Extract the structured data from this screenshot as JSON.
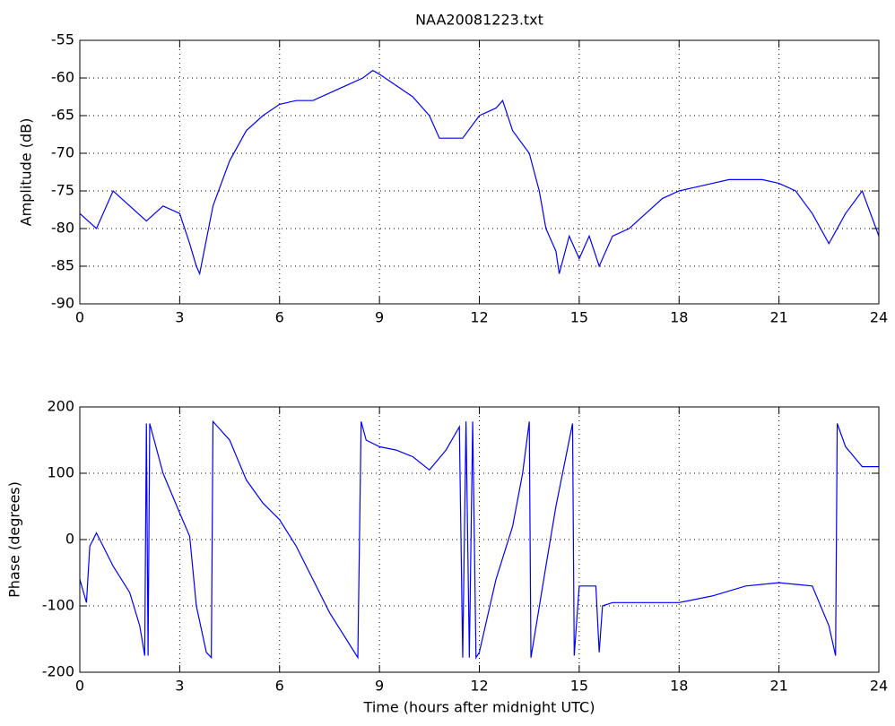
{
  "chart_data": [
    {
      "type": "line",
      "title": "NAA20081223.txt",
      "y_label": "Amplitude (dB)",
      "color": "#0000ff",
      "grid": true,
      "x": [
        0,
        0.5,
        1,
        1.5,
        2,
        2.5,
        3,
        3.3,
        3.5,
        3.6,
        4,
        4.5,
        5,
        5.5,
        6,
        6.5,
        7,
        7.5,
        8,
        8.5,
        8.8,
        9,
        9.5,
        10,
        10.5,
        10.8,
        11,
        11.5,
        12,
        12.5,
        12.7,
        13,
        13.5,
        13.8,
        14,
        14.3,
        14.4,
        14.7,
        15,
        15.3,
        15.6,
        16,
        16.5,
        17,
        17.5,
        18,
        18.5,
        19,
        19.5,
        20,
        20.5,
        21,
        21.5,
        22,
        22.5,
        23,
        23.5,
        24
      ],
      "values": [
        -78,
        -80,
        -75,
        -77,
        -79,
        -77,
        -78,
        -82,
        -85,
        -86,
        -77,
        -71,
        -67,
        -65,
        -63.5,
        -63,
        -63,
        -62,
        -61,
        -60,
        -59,
        -59.5,
        -61,
        -62.5,
        -65,
        -68,
        -68,
        -68,
        -65,
        -64,
        -63,
        -67,
        -70,
        -75,
        -80,
        -83,
        -86,
        -81,
        -84,
        -81,
        -85,
        -81,
        -80,
        -78,
        -76,
        -75,
        -74.5,
        -74,
        -73.5,
        -73.5,
        -73.5,
        -74,
        -75,
        -78,
        -82,
        -78,
        -75,
        -81
      ],
      "xlim": [
        0,
        24
      ],
      "xticks": [
        0,
        3,
        6,
        9,
        12,
        15,
        18,
        21,
        24
      ],
      "ylim": [
        -90,
        -55
      ],
      "yticks": [
        -90,
        -85,
        -80,
        -75,
        -70,
        -65,
        -60,
        -55
      ]
    },
    {
      "type": "line",
      "y_label": "Phase (degrees)",
      "x_label": "Time (hours after midnight UTC)",
      "color": "#0000ff",
      "grid": true,
      "x": [
        0,
        0.2,
        0.3,
        0.5,
        1,
        1.5,
        1.8,
        1.95,
        2.0,
        2.05,
        2.1,
        2.5,
        3,
        3.3,
        3.5,
        3.8,
        3.95,
        4.0,
        4.5,
        5,
        5.5,
        6,
        6.5,
        7,
        7.5,
        8,
        8.35,
        8.45,
        8.6,
        9,
        9.5,
        10,
        10.5,
        11,
        11.4,
        11.5,
        11.6,
        11.7,
        11.8,
        11.9,
        12,
        12.5,
        13,
        13.3,
        13.5,
        13.55,
        14,
        14.3,
        14.5,
        14.8,
        14.85,
        15,
        15.5,
        15.6,
        15.7,
        16,
        17,
        18,
        19,
        20,
        21,
        22,
        22.5,
        22.7,
        22.75,
        23,
        23.5,
        24
      ],
      "values": [
        -60,
        -95,
        -10,
        10,
        -40,
        -80,
        -130,
        -175,
        175,
        -175,
        175,
        100,
        40,
        5,
        -100,
        -170,
        -178,
        178,
        150,
        90,
        55,
        30,
        -10,
        -60,
        -110,
        -150,
        -178,
        178,
        150,
        140,
        135,
        125,
        105,
        135,
        170,
        -178,
        178,
        -178,
        178,
        -178,
        -170,
        -60,
        20,
        100,
        178,
        -178,
        -40,
        50,
        100,
        175,
        -175,
        -70,
        -70,
        -170,
        -100,
        -95,
        -95,
        -95,
        -85,
        -70,
        -65,
        -70,
        -130,
        -175,
        175,
        140,
        110,
        110
      ],
      "xlim": [
        0,
        24
      ],
      "xticks": [
        0,
        3,
        6,
        9,
        12,
        15,
        18,
        21,
        24
      ],
      "ylim": [
        -200,
        200
      ],
      "yticks": [
        -200,
        -100,
        0,
        100,
        200
      ]
    }
  ]
}
